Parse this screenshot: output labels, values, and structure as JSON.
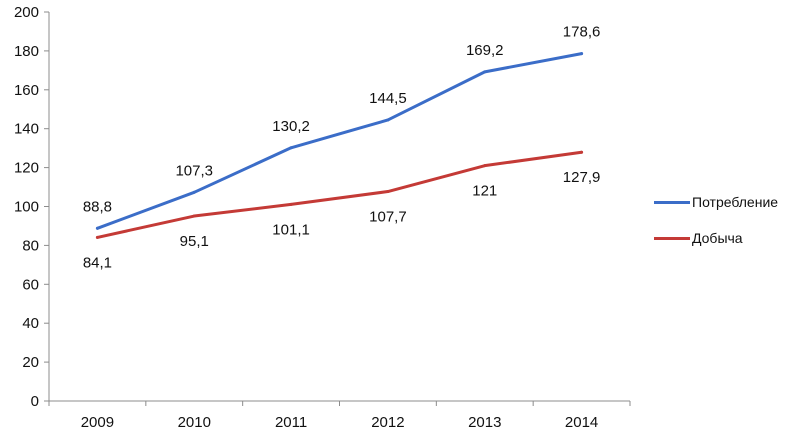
{
  "chart_data": {
    "type": "line",
    "x": [
      "2009",
      "2010",
      "2011",
      "2012",
      "2013",
      "2014"
    ],
    "ylim": [
      0,
      200
    ],
    "yticks": [
      "0",
      "20",
      "40",
      "60",
      "80",
      "100",
      "120",
      "140",
      "160",
      "180",
      "200"
    ],
    "grid": false,
    "legend_position": "right",
    "series": [
      {
        "name": "Потребление",
        "color": "#3B6DC8",
        "values": [
          88.8,
          107.3,
          130.2,
          144.5,
          169.2,
          178.6
        ],
        "labels": [
          "88,8",
          "107,3",
          "130,2",
          "144,5",
          "169,2",
          "178,6"
        ]
      },
      {
        "name": "Добыча",
        "color": "#C43A36",
        "values": [
          84.1,
          95.1,
          101.1,
          107.7,
          121,
          127.9
        ],
        "labels": [
          "84,1",
          "95,1",
          "101,1",
          "107,7",
          "121",
          "127,9"
        ]
      }
    ]
  }
}
